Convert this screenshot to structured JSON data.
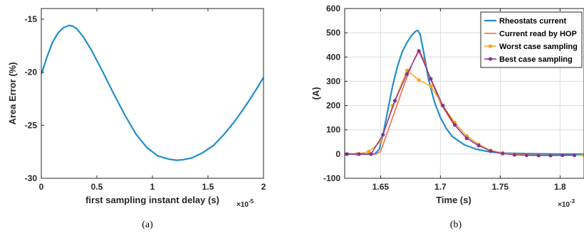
{
  "chart_data": [
    {
      "type": "line",
      "caption": "(a)",
      "xlabel": "first sampling instant delay (s)",
      "x_exponent": "-5",
      "ylabel": "Area Error (%)",
      "xlim": [
        0,
        2
      ],
      "ylim": [
        -30,
        -14
      ],
      "xticks": [
        0,
        0.5,
        1,
        1.5,
        2
      ],
      "xtick_labels": [
        "0",
        "0.5",
        "1",
        "1.5",
        "2"
      ],
      "yticks": [
        -30,
        -25,
        -20,
        -15
      ],
      "ytick_labels": [
        "-30",
        "-25",
        "-20",
        "-15"
      ],
      "grid": false,
      "series": [
        {
          "color": "#1f8fc9",
          "x": [
            0,
            0.05,
            0.1,
            0.15,
            0.2,
            0.25,
            0.28,
            0.32,
            0.38,
            0.45,
            0.55,
            0.65,
            0.75,
            0.85,
            0.95,
            1.05,
            1.15,
            1.22,
            1.27,
            1.35,
            1.45,
            1.55,
            1.65,
            1.75,
            1.85,
            1.93,
            2.0
          ],
          "y": [
            -20.2,
            -18.6,
            -17.2,
            -16.3,
            -15.8,
            -15.6,
            -15.65,
            -15.9,
            -16.7,
            -17.9,
            -19.9,
            -22.0,
            -24.0,
            -25.8,
            -27.1,
            -27.9,
            -28.2,
            -28.3,
            -28.25,
            -28.1,
            -27.6,
            -26.9,
            -25.8,
            -24.5,
            -23.0,
            -21.7,
            -20.5
          ]
        }
      ]
    },
    {
      "type": "line",
      "caption": "(b)",
      "xlabel": "Time (s)",
      "x_exponent": "-3",
      "ylabel": "(A)",
      "xlim": [
        1.62,
        1.82
      ],
      "ylim": [
        -100,
        600
      ],
      "xticks": [
        1.65,
        1.7,
        1.75,
        1.8
      ],
      "xtick_labels": [
        "1.65",
        "1.7",
        "1.75",
        "1.8"
      ],
      "yticks": [
        -100,
        0,
        100,
        200,
        300,
        400,
        500,
        600
      ],
      "ytick_labels": [
        "-100",
        "0",
        "100",
        "200",
        "300",
        "400",
        "500",
        "600"
      ],
      "grid": true,
      "legend": "top-right",
      "series": [
        {
          "name": "Rheostats current",
          "color": "#1f8fc9",
          "width": 2.2,
          "marker": "none",
          "x": [
            1.62,
            1.645,
            1.649,
            1.652,
            1.656,
            1.66,
            1.664,
            1.668,
            1.672,
            1.676,
            1.679,
            1.681,
            1.683,
            1.686,
            1.69,
            1.695,
            1.7,
            1.705,
            1.71,
            1.72,
            1.73,
            1.74,
            1.75,
            1.76,
            1.78,
            1.8,
            1.82
          ],
          "y": [
            0,
            0,
            20,
            80,
            180,
            280,
            360,
            420,
            460,
            490,
            505,
            510,
            495,
            420,
            310,
            215,
            150,
            105,
            72,
            38,
            20,
            10,
            5,
            3,
            1,
            0,
            0
          ]
        },
        {
          "name": "Current read by HOP",
          "color": "#f0602d",
          "width": 1.4,
          "marker": "none",
          "x": [
            1.62,
            1.646,
            1.65,
            1.66,
            1.67,
            1.678,
            1.682,
            1.686,
            1.69,
            1.7,
            1.71,
            1.72,
            1.73,
            1.74,
            1.75,
            1.76,
            1.78,
            1.8,
            1.82
          ],
          "y": [
            0,
            0,
            10,
            150,
            290,
            390,
            430,
            390,
            330,
            210,
            130,
            75,
            40,
            18,
            6,
            0,
            -5,
            -5,
            -5
          ]
        },
        {
          "name": "Worst case sampling",
          "color": "#f2a51f",
          "width": 1.4,
          "marker": "circle",
          "x": [
            1.62,
            1.63,
            1.64,
            1.65,
            1.66,
            1.672,
            1.682,
            1.692,
            1.702,
            1.712,
            1.722,
            1.732,
            1.742,
            1.752,
            1.762,
            1.772,
            1.782,
            1.792,
            1.802,
            1.812,
            1.82
          ],
          "y": [
            0,
            0,
            10,
            50,
            200,
            345,
            305,
            280,
            200,
            130,
            75,
            40,
            15,
            5,
            0,
            -3,
            -5,
            -5,
            -5,
            -5,
            -5
          ]
        },
        {
          "name": "Best case sampling",
          "color": "#8a2f96",
          "width": 1.4,
          "marker": "circle",
          "x": [
            1.622,
            1.632,
            1.642,
            1.652,
            1.662,
            1.672,
            1.682,
            1.692,
            1.702,
            1.712,
            1.722,
            1.732,
            1.742,
            1.752,
            1.762,
            1.772,
            1.782,
            1.792,
            1.802,
            1.812
          ],
          "y": [
            0,
            0,
            0,
            80,
            220,
            330,
            425,
            310,
            200,
            120,
            65,
            35,
            12,
            2,
            -3,
            -5,
            -6,
            -6,
            -5,
            -5
          ]
        }
      ]
    }
  ]
}
